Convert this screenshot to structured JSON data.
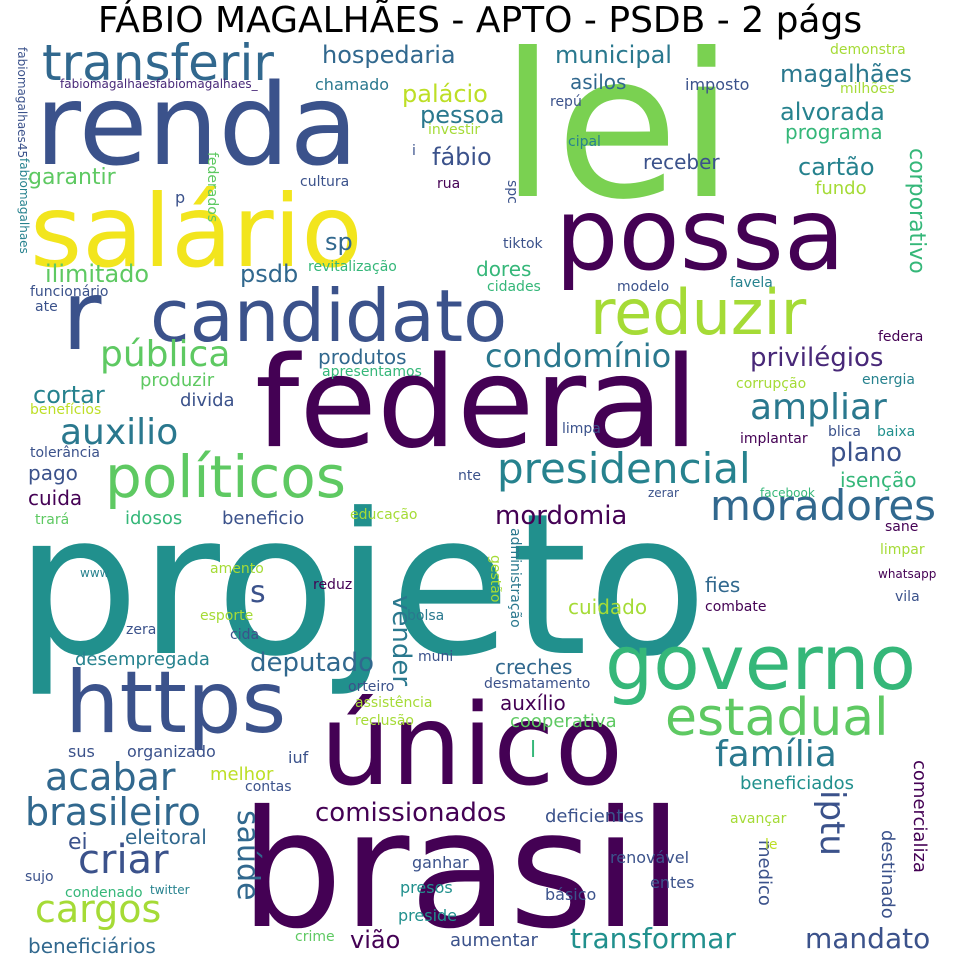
{
  "title": "FÁBIO MAGALHÃES - APTO - PSDB - 2 págs",
  "palette": [
    "#440154",
    "#3b528b",
    "#21908d",
    "#5dc863",
    "#fde725"
  ],
  "words": [
    {
      "text": "projeto",
      "color": "#21908d"
    },
    {
      "text": "brasil",
      "color": "#440154"
    },
    {
      "text": "lei",
      "color": "#7ad151"
    },
    {
      "text": "federal",
      "color": "#440154"
    },
    {
      "text": "renda",
      "color": "#3b528b"
    },
    {
      "text": "salário",
      "color": "#f2e51d"
    },
    {
      "text": "possa",
      "color": "#440154"
    },
    {
      "text": "único",
      "color": "#440154"
    },
    {
      "text": "https",
      "color": "#3b528b"
    },
    {
      "text": "governo",
      "color": "#35b779"
    },
    {
      "text": "candidato",
      "color": "#3b528b"
    },
    {
      "text": "reduzir",
      "color": "#a5db36"
    },
    {
      "text": "políticos",
      "color": "#5ec962"
    },
    {
      "text": "estadual",
      "color": "#5ec962"
    },
    {
      "text": "r",
      "color": "#3b528b"
    },
    {
      "text": "transferir",
      "color": "#31688e"
    },
    {
      "text": "presidencial",
      "color": "#26828e"
    },
    {
      "text": "moradores",
      "color": "#31688e"
    },
    {
      "text": "condomínio",
      "color": "#2a788e"
    },
    {
      "text": "pública",
      "color": "#5ec962"
    },
    {
      "text": "auxilio",
      "color": "#2a788e"
    },
    {
      "text": "ampliar",
      "color": "#2a788e"
    },
    {
      "text": "família",
      "color": "#2a788e"
    },
    {
      "text": "brasileiro",
      "color": "#31688e"
    },
    {
      "text": "cargos",
      "color": "#a5db36"
    },
    {
      "text": "acabar",
      "color": "#31688e"
    },
    {
      "text": "criar",
      "color": "#3b528b"
    },
    {
      "text": "saúde",
      "color": "#31688e"
    },
    {
      "text": "iptu",
      "color": "#3b528b"
    },
    {
      "text": "comissionados",
      "color": "#440154"
    },
    {
      "text": "deputado",
      "color": "#31688e"
    },
    {
      "text": "mordomia",
      "color": "#440154"
    },
    {
      "text": "transformar",
      "color": "#21908d"
    },
    {
      "text": "mandato",
      "color": "#3b528b"
    },
    {
      "text": "hospedaria",
      "color": "#31688e"
    },
    {
      "text": "municipal",
      "color": "#2a788e"
    },
    {
      "text": "magalhães",
      "color": "#2a788e"
    },
    {
      "text": "alvorada",
      "color": "#26828e"
    },
    {
      "text": "privilégios",
      "color": "#482878"
    },
    {
      "text": "palácio",
      "color": "#bddf26"
    },
    {
      "text": "pessoa",
      "color": "#2a788e"
    },
    {
      "text": "fábio",
      "color": "#3b528b"
    },
    {
      "text": "cartão",
      "color": "#26828e"
    },
    {
      "text": "corporativo",
      "color": "#35b779"
    },
    {
      "text": "plano",
      "color": "#3b528b"
    },
    {
      "text": "vender",
      "color": "#2a788e"
    },
    {
      "text": "s",
      "color": "#3b528b"
    },
    {
      "text": "sp",
      "color": "#31688e"
    },
    {
      "text": "psdb",
      "color": "#31688e"
    },
    {
      "text": "ilimitado",
      "color": "#5ec962"
    },
    {
      "text": "garantir",
      "color": "#5ec962"
    },
    {
      "text": "cortar",
      "color": "#26828e"
    },
    {
      "text": "produzir",
      "color": "#5ec962"
    },
    {
      "text": "produtos",
      "color": "#31688e"
    },
    {
      "text": "dores",
      "color": "#35b779"
    },
    {
      "text": "receber",
      "color": "#3b528b"
    },
    {
      "text": "asilos",
      "color": "#31688e"
    },
    {
      "text": "programa",
      "color": "#35b779"
    },
    {
      "text": "fundo",
      "color": "#a5db36"
    },
    {
      "text": "divida",
      "color": "#3b528b"
    },
    {
      "text": "pago",
      "color": "#3b528b"
    },
    {
      "text": "cuida",
      "color": "#440154"
    },
    {
      "text": "idosos",
      "color": "#35b779"
    },
    {
      "text": "beneficio",
      "color": "#3b528b"
    },
    {
      "text": "isenção",
      "color": "#35b779"
    },
    {
      "text": "fies",
      "color": "#31688e"
    },
    {
      "text": "cuidado",
      "color": "#a5db36"
    },
    {
      "text": "creches",
      "color": "#31688e"
    },
    {
      "text": "auxílio",
      "color": "#440154"
    },
    {
      "text": "cooperativa",
      "color": "#5ec962"
    },
    {
      "text": "desempregada",
      "color": "#26828e"
    },
    {
      "text": "ei",
      "color": "#3b528b"
    },
    {
      "text": "eleitoral",
      "color": "#31688e"
    },
    {
      "text": "melhor",
      "color": "#bddf26"
    },
    {
      "text": "beneficiados",
      "color": "#21908d"
    },
    {
      "text": "deficientes",
      "color": "#3b528b"
    },
    {
      "text": "medico",
      "color": "#3b528b"
    },
    {
      "text": "destinado",
      "color": "#3b528b"
    },
    {
      "text": "comercializa",
      "color": "#440154"
    },
    {
      "text": "beneficiários",
      "color": "#31688e"
    },
    {
      "text": "vião",
      "color": "#440154"
    },
    {
      "text": "aumentar",
      "color": "#3b528b"
    },
    {
      "text": "sus",
      "color": "#3b528b"
    },
    {
      "text": "organizado",
      "color": "#3b528b"
    },
    {
      "text": "iuf",
      "color": "#3b528b"
    },
    {
      "text": "contas",
      "color": "#3b528b"
    },
    {
      "text": "l",
      "color": "#35b779"
    },
    {
      "text": "renovável",
      "color": "#3b528b"
    },
    {
      "text": "entes",
      "color": "#3b528b"
    },
    {
      "text": "básico",
      "color": "#3b528b"
    },
    {
      "text": "ganhar",
      "color": "#3b528b"
    },
    {
      "text": "presos",
      "color": "#21908d"
    },
    {
      "text": "preside",
      "color": "#21908d"
    },
    {
      "text": "crime",
      "color": "#5ec962"
    },
    {
      "text": "sujo",
      "color": "#3b528b"
    },
    {
      "text": "condenado",
      "color": "#35b779"
    },
    {
      "text": "twitter",
      "color": "#26828e"
    },
    {
      "text": "le",
      "color": "#bddf26"
    },
    {
      "text": "avançar",
      "color": "#a5db36"
    },
    {
      "text": "chamado",
      "color": "#2a788e"
    },
    {
      "text": "imposto",
      "color": "#3b528b"
    },
    {
      "text": "demonstra",
      "color": "#a5db36"
    },
    {
      "text": "milhões",
      "color": "#a5db36"
    },
    {
      "text": "repú",
      "color": "#3b528b"
    },
    {
      "text": "investir",
      "color": "#a5db36"
    },
    {
      "text": "cipal",
      "color": "#26828e"
    },
    {
      "text": "i",
      "color": "#3b528b"
    },
    {
      "text": "rua",
      "color": "#440154"
    },
    {
      "text": "cultura",
      "color": "#3b528b"
    },
    {
      "text": "p",
      "color": "#3b528b"
    },
    {
      "text": "federados",
      "color": "#5ec962"
    },
    {
      "text": "spc",
      "color": "#3b528b"
    },
    {
      "text": "tiktok",
      "color": "#3b528b"
    },
    {
      "text": "revitalização",
      "color": "#35b779"
    },
    {
      "text": "cidades",
      "color": "#35b779"
    },
    {
      "text": "modelo",
      "color": "#3b528b"
    },
    {
      "text": "favela",
      "color": "#26828e"
    },
    {
      "text": "federa",
      "color": "#440154"
    },
    {
      "text": "funcionário",
      "color": "#3b528b"
    },
    {
      "text": "ate",
      "color": "#3b528b"
    },
    {
      "text": "apresentamos",
      "color": "#35b779"
    },
    {
      "text": "corrupção",
      "color": "#a5db36"
    },
    {
      "text": "energia",
      "color": "#26828e"
    },
    {
      "text": "limpa",
      "color": "#3b528b"
    },
    {
      "text": "implantar",
      "color": "#440154"
    },
    {
      "text": "blica",
      "color": "#3b528b"
    },
    {
      "text": "baixa",
      "color": "#21908d"
    },
    {
      "text": "benefícios",
      "color": "#bddf26"
    },
    {
      "text": "tolerância",
      "color": "#3b528b"
    },
    {
      "text": "trará",
      "color": "#5ec962"
    },
    {
      "text": "educação",
      "color": "#a5db36"
    },
    {
      "text": "nte",
      "color": "#3b528b"
    },
    {
      "text": "zerar",
      "color": "#3b528b"
    },
    {
      "text": "facebook",
      "color": "#35b779"
    },
    {
      "text": "sane",
      "color": "#440154"
    },
    {
      "text": "limpar",
      "color": "#a5db36"
    },
    {
      "text": "whatsapp",
      "color": "#440154"
    },
    {
      "text": "vila",
      "color": "#3b528b"
    },
    {
      "text": "www",
      "color": "#26828e"
    },
    {
      "text": "amento",
      "color": "#a5db36"
    },
    {
      "text": "reduz",
      "color": "#440154"
    },
    {
      "text": "gestão",
      "color": "#a5db36"
    },
    {
      "text": "administração",
      "color": "#2a788e"
    },
    {
      "text": "combate",
      "color": "#440154"
    },
    {
      "text": "esporte",
      "color": "#a5db36"
    },
    {
      "text": "bolsa",
      "color": "#2a788e"
    },
    {
      "text": "zera",
      "color": "#3b528b"
    },
    {
      "text": "cida",
      "color": "#3b528b"
    },
    {
      "text": "muni",
      "color": "#3b528b"
    },
    {
      "text": "desmatamento",
      "color": "#3b528b"
    },
    {
      "text": "orteiro",
      "color": "#3b528b"
    },
    {
      "text": "assistência",
      "color": "#a5db36"
    },
    {
      "text": "reclusão",
      "color": "#a5db36"
    },
    {
      "text": "fabiomagalhaes45",
      "color": "#3b528b"
    },
    {
      "text": "fabiomagalhaesfabiomagalhaes_",
      "color": "#482878"
    },
    {
      "text": "fabiomagalhaes",
      "color": "#26828e"
    }
  ]
}
